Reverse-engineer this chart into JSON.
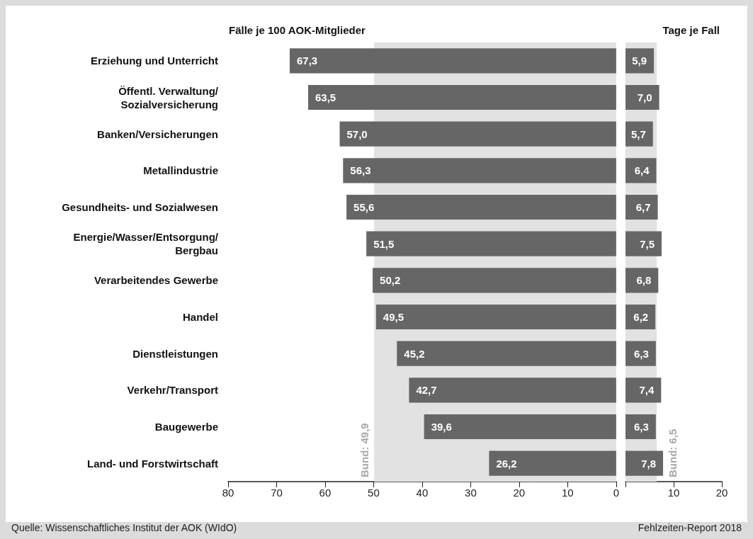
{
  "chart_data": [
    {
      "type": "bar",
      "orientation": "horizontal",
      "title": "Fälle je 100 AOK-Mitglieder",
      "categories": [
        "Erziehung und Unterricht",
        "Öffentl. Verwaltung/\nSozialversicherung",
        "Banken/Versicherungen",
        "Metallindustrie",
        "Gesundheits- und Sozialwesen",
        "Energie/Wasser/Entsorgung/\nBergbau",
        "Verarbeitendes Gewerbe",
        "Handel",
        "Dienstleistungen",
        "Verkehr/Transport",
        "Baugewerbe",
        "Land- und Forstwirtschaft"
      ],
      "values": [
        67.3,
        63.5,
        57.0,
        56.3,
        55.6,
        51.5,
        50.2,
        49.5,
        45.2,
        42.7,
        39.6,
        26.2
      ],
      "value_labels": [
        "67,3",
        "63,5",
        "57,0",
        "56,3",
        "55,6",
        "51,5",
        "50,2",
        "49,5",
        "45,2",
        "42,7",
        "39,6",
        "26,2"
      ],
      "color": "#666666",
      "xlim": [
        80,
        0
      ],
      "xticks": [
        80,
        70,
        60,
        50,
        40,
        30,
        20,
        10,
        0
      ],
      "bands": [
        {
          "axis": "x",
          "from": 0,
          "to": 49.9,
          "label": "Bund: 49,9",
          "color": "#e1e2e1"
        }
      ],
      "annotations": [
        "Quelle: Wissenschaftliches Institut der AOK (WIdO)"
      ],
      "grid": false
    },
    {
      "type": "bar",
      "orientation": "horizontal",
      "title": "Tage je Fall",
      "categories": [
        null,
        null,
        null,
        null,
        null,
        null,
        null,
        null,
        null,
        null,
        null,
        null
      ],
      "values": [
        5.9,
        7.0,
        5.7,
        6.4,
        6.7,
        7.5,
        6.8,
        6.2,
        6.3,
        7.4,
        6.3,
        7.8
      ],
      "value_labels": [
        "5,9",
        "7,0",
        "5,7",
        "6,4",
        "6,7",
        "7,5",
        "6,8",
        "6,2",
        "6,3",
        "7,4",
        "6,3",
        "7,8"
      ],
      "color": "#666666",
      "xlim": [
        0,
        20
      ],
      "xticks": [
        {
          "value": 0,
          "label": null
        },
        10,
        20
      ],
      "bands": [
        {
          "axis": "x",
          "from": 0,
          "to": 6.5,
          "label": "Bund: 6,5",
          "color": "#e1e2e1"
        }
      ],
      "annotations": [
        "Fehlzeiten-Report 2018"
      ],
      "tick_labels": "x",
      "grid": false
    }
  ]
}
